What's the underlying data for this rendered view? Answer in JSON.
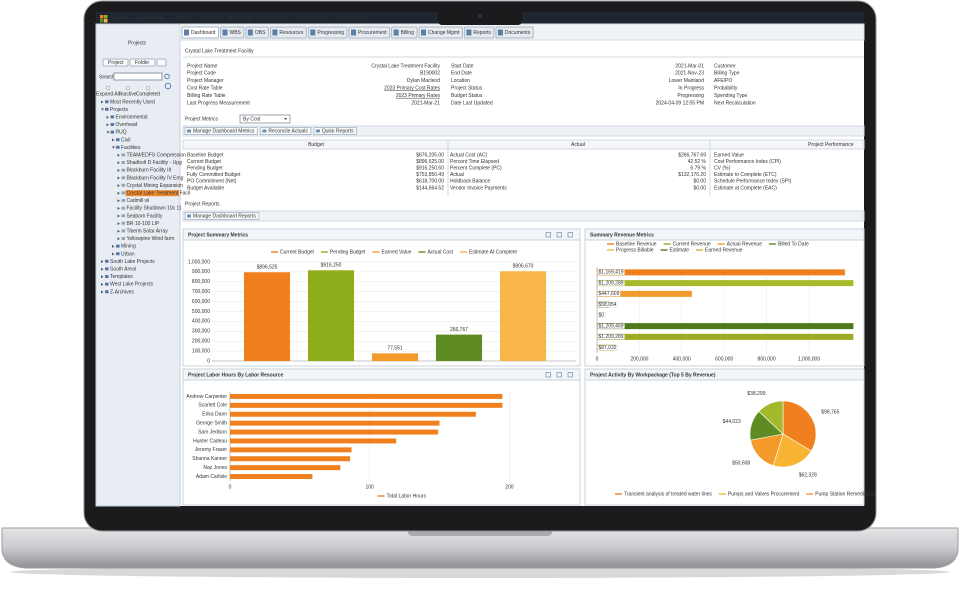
{
  "nav": [
    "Jobsite",
    "Timesheets",
    "Reports",
    "Projects",
    "Approvals",
    "Documents",
    "Configuration",
    "Administration"
  ],
  "tabs": [
    "Dashboard",
    "WBS",
    "OBS",
    "Resources",
    "Progressing",
    "Procurement",
    "Billing",
    "Change Mgmt",
    "Reports",
    "Documents"
  ],
  "sidebar": {
    "title": "Projects",
    "buttons": [
      "Project",
      "Folder"
    ],
    "search_label": "Search",
    "filters": [
      "Expand All",
      "Inactive",
      "Completed"
    ],
    "tree": [
      {
        "label": "Most Recently Used"
      },
      {
        "label": "Projects",
        "children": [
          {
            "label": "Environmental"
          },
          {
            "label": "Overhead"
          },
          {
            "label": "RUQ",
            "children": [
              {
                "label": "Civil"
              },
              {
                "label": "Facilities",
                "children": [
                  {
                    "label": "TEAM/EDFS Compression"
                  },
                  {
                    "label": "Shadbolt D Facility - Upg"
                  },
                  {
                    "label": "Blackburn Facility III"
                  },
                  {
                    "label": "Blackburn Facility IV Emg"
                  },
                  {
                    "label": "Crystal Mining Expansion"
                  },
                  {
                    "label": "Crystal Lake Treatment Facil",
                    "selected": true
                  },
                  {
                    "label": "Cadmill vii"
                  },
                  {
                    "label": "Facility Shutdown 10c 11"
                  },
                  {
                    "label": "Seaborn Facility"
                  },
                  {
                    "label": "BR 10-100 LIP"
                  },
                  {
                    "label": "Tiberin Solar Array"
                  },
                  {
                    "label": "Yellowpine Wind farm"
                  }
                ]
              },
              {
                "label": "Mining"
              },
              {
                "label": "Urban"
              }
            ]
          }
        ]
      },
      {
        "label": "South Lake Projects"
      },
      {
        "label": "South Areal"
      },
      {
        "label": "Templates"
      },
      {
        "label": "West Lake Projects"
      },
      {
        "label": "Z-Archives"
      }
    ]
  },
  "project": {
    "title": "Crystal Lake Treatment Facility",
    "details": [
      [
        {
          "label": "Project Name",
          "value": "Crystal Lake Treatment Facility"
        },
        {
          "label": "Project Code",
          "value": "B190002"
        },
        {
          "label": "Project Manager",
          "value": "Dylan Macleod"
        },
        {
          "label": "Cost Rate Table",
          "value": "2023 Primary Cost Rates",
          "link": true
        },
        {
          "label": "Billing Rate Table",
          "value": "2023 Primary Rates",
          "link": true
        },
        {
          "label": "Last Progress Measurement",
          "value": "2021-Mar-21"
        }
      ],
      [
        {
          "label": "Start Date",
          "value": "2021-Mar-01"
        },
        {
          "label": "End Date",
          "value": "2021-Nov-23"
        },
        {
          "label": "Location",
          "value": "Lower Mainland"
        },
        {
          "label": "Project Status",
          "value": "In Progress"
        },
        {
          "label": "Budget Status",
          "value": "Progressing"
        },
        {
          "label": "Date Last Updated",
          "value": "2024-04-09 12:05 PM"
        }
      ],
      [
        {
          "label": "Customer"
        },
        {
          "label": "Billing Type"
        },
        {
          "label": "AFE/PO"
        },
        {
          "label": "Probability"
        },
        {
          "label": "Spending Type"
        },
        {
          "label": "Next Recalculation"
        }
      ]
    ]
  },
  "metrics": {
    "title": "Project Metrics",
    "mode": "By Cost",
    "buttons": [
      "Manage Dashboard Metrics",
      "Reconcile Actuals",
      "Quick Reports"
    ],
    "columns": [
      {
        "title": "Budget",
        "rows": [
          {
            "label": "Baseline Budget",
            "value": "$876,205.00"
          },
          {
            "label": "Current Budget",
            "value": "$896,525.00"
          },
          {
            "label": "Pending Budget",
            "value": "$916,250.60"
          },
          {
            "label": "Fully Committed Budget",
            "value": "$753,850.49"
          },
          {
            "label": "PO Commitment (Net)",
            "value": "$618,700.00"
          },
          {
            "label": "Budget Available",
            "value": "$144,664.52"
          }
        ]
      },
      {
        "title": "Actual",
        "rows": [
          {
            "label": "Actual Cost (AC)",
            "value": "$266,767.69"
          },
          {
            "label": "Percent Time Elapsed",
            "value": "42.52 %"
          },
          {
            "label": "Percent Complete (PC)",
            "value": "6.79 %"
          },
          {
            "label": "Actual",
            "value": "$132,176.20"
          },
          {
            "label": "Holdback Balance",
            "value": "$0.00"
          },
          {
            "label": "Vendor Invoice Payments",
            "value": "$0.00"
          }
        ]
      },
      {
        "title": "Project Performance",
        "rows": [
          {
            "label": "Earned Value"
          },
          {
            "label": "Cost Performance Index (CPI)"
          },
          {
            "label": "CV (%)"
          },
          {
            "label": "Estimate to Complete (ETC)"
          },
          {
            "label": "Schedule Performance Index (SPI)"
          },
          {
            "label": "Estimate at Complete (EAC)"
          }
        ]
      }
    ]
  },
  "reports": {
    "title": "Project Reports",
    "button": "Manage Dashboard Reports"
  },
  "chart_data": [
    {
      "type": "bar",
      "title": "Project Summary Metrics",
      "categories": [
        "Current Budget",
        "Pending Budget",
        "Earned Value",
        "Actual Cost",
        "Estimate At Complete"
      ],
      "values": [
        896525,
        916250,
        77551,
        266767,
        906670
      ],
      "value_labels": [
        "$896,525",
        "$916,250",
        "77,551",
        "266,767",
        "$906,670"
      ],
      "colors": [
        "#f0801e",
        "#8fae1b",
        "#f39a2a",
        "#5f8c22",
        "#f9b44a"
      ],
      "ylim": [
        0,
        1000000
      ],
      "yticks": [
        0,
        {
          "value": 100000,
          "label": "100,000"
        },
        {
          "value": 200000,
          "label": "200,000"
        },
        {
          "value": 300000,
          "label": "300,000"
        },
        {
          "value": 400000,
          "label": "400,000"
        },
        {
          "value": 500000,
          "label": "500,000"
        },
        {
          "value": 600000,
          "label": "600,000"
        },
        {
          "value": 700000,
          "label": "700,000"
        },
        {
          "value": 800000,
          "label": "800,000"
        },
        {
          "value": 900000,
          "label": "900,000"
        },
        {
          "value": 1000000,
          "label": "1,000,000"
        }
      ],
      "grid": true
    },
    {
      "type": "bar",
      "orientation": "horizontal",
      "title": "Summary Revenue Metrics",
      "legend": [
        {
          "name": "Baseline Revenue",
          "color": "#f0801e"
        },
        {
          "name": "Current Revenue",
          "color": "#8fae1b"
        },
        {
          "name": "Actual Revenue",
          "color": "#f39a2a"
        },
        {
          "name": "Billed To Date",
          "color": "#5f8c22"
        },
        {
          "name": "Progress Billable",
          "color": "#f9b44a"
        },
        {
          "name": "Estimate",
          "color": "#4e7a1c"
        },
        {
          "name": "Earned Revenue",
          "color": "#c8b834"
        }
      ],
      "categories": [
        null,
        null,
        null,
        null,
        null,
        null,
        null,
        null
      ],
      "values": [
        1169419,
        1209289,
        447609,
        58054,
        0,
        1209469,
        1209289,
        87032
      ],
      "value_labels": [
        "$1,169,419",
        "$1,209,289",
        "$447,609",
        "$58,054",
        "$0",
        "$1,209,469",
        "$1,209,289",
        "$87,032"
      ],
      "colors": [
        "#f0801e",
        "#a9b92c",
        "#f39a2a",
        "#5f8c22",
        "#f9b44a",
        "#4e7a1c",
        "#9bab22",
        "#c8b834"
      ],
      "xlim": [
        0,
        1250000
      ],
      "xticks": [
        0,
        {
          "value": 200000,
          "label": "200,000"
        },
        {
          "value": 400000,
          "label": "400,000"
        },
        {
          "value": 600000,
          "label": "600,000"
        },
        {
          "value": 800000,
          "label": "800,000"
        },
        {
          "value": 1000000,
          "label": "1,000,000"
        }
      ],
      "grid": true
    },
    {
      "type": "bar",
      "orientation": "horizontal",
      "title": "Project Labor Hours By Labor Resource",
      "categories": [
        "Andrew Carpenter",
        "Scarlett Cole",
        "Erika Dann",
        "George Smith",
        "Sam Jedison",
        "Hunter Cadeau",
        "Jeremy Fraser",
        "Shanna Kanner",
        "Naz Jones",
        "Adam Carlisle"
      ],
      "series": [
        {
          "name": "Total Labor Hours",
          "color": "#f0801e",
          "values": [
            195,
            195,
            176,
            150,
            149,
            119,
            87,
            86,
            79,
            59
          ]
        }
      ],
      "xlim": [
        0,
        247
      ],
      "xticks": [
        0,
        100,
        200
      ],
      "grid": true
    },
    {
      "type": "pie",
      "title": "Project Activity By Workpackage (Top 5 By Revenue)",
      "categories": [
        "Transient analysis of treated water lines",
        "Pumps and Valves Procurement",
        "Pump Station Remediation",
        null,
        null
      ],
      "values": [
        98765,
        62328,
        50608,
        44023,
        38299
      ],
      "value_labels": [
        "$98,765",
        "$62,328",
        "$50,608",
        "$44,023",
        "$38,299"
      ],
      "colors": [
        "#f0801e",
        "#f7b531",
        "#f39a2a",
        "#5f8c22",
        "#a3b82a"
      ]
    }
  ]
}
